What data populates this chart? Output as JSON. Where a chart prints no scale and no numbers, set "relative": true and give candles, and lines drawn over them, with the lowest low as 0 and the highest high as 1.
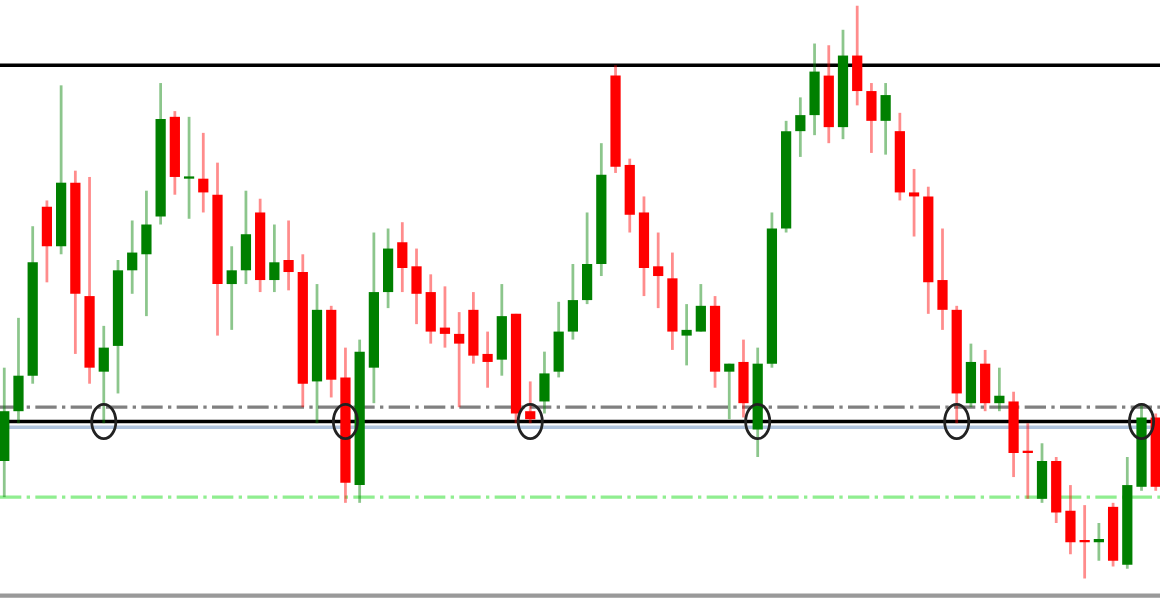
{
  "chart_data": {
    "type": "candlestick",
    "relative": true,
    "grid": false,
    "legend": false,
    "categories": [
      null,
      null,
      null,
      null,
      null,
      null,
      null,
      null,
      null,
      null,
      null,
      null,
      null,
      null,
      null,
      null,
      null,
      null,
      null,
      null,
      null,
      null,
      null,
      null,
      null,
      null,
      null,
      null,
      null,
      null,
      null,
      null,
      null,
      null,
      null,
      null,
      null,
      null,
      null,
      null,
      null,
      null,
      null,
      null,
      null,
      null,
      null,
      null,
      null,
      null,
      null,
      null,
      null,
      null,
      null,
      null,
      null,
      null,
      null,
      null,
      null,
      null,
      null,
      null,
      null,
      null,
      null,
      null,
      null,
      null,
      null,
      null,
      null,
      null,
      null,
      null,
      null,
      null,
      null,
      null,
      null,
      null
    ],
    "ohlc": [
      [
        0.205,
        0.368,
        0.142,
        0.292
      ],
      [
        0.292,
        0.455,
        0.271,
        0.354
      ],
      [
        0.354,
        0.615,
        0.34,
        0.552
      ],
      [
        0.649,
        0.66,
        0.517,
        0.58
      ],
      [
        0.58,
        0.861,
        0.566,
        0.691
      ],
      [
        0.691,
        0.712,
        0.392,
        0.497
      ],
      [
        0.493,
        0.701,
        0.34,
        0.368
      ],
      [
        0.361,
        0.441,
        0.271,
        0.403
      ],
      [
        0.406,
        0.556,
        0.323,
        0.538
      ],
      [
        0.538,
        0.625,
        0.497,
        0.569
      ],
      [
        0.566,
        0.677,
        0.458,
        0.618
      ],
      [
        0.632,
        0.865,
        0.618,
        0.802
      ],
      [
        0.806,
        0.816,
        0.67,
        0.701
      ],
      [
        0.698,
        0.806,
        0.628,
        0.701
      ],
      [
        0.698,
        0.778,
        0.639,
        0.674
      ],
      [
        0.67,
        0.726,
        0.424,
        0.514
      ],
      [
        0.514,
        0.58,
        0.434,
        0.538
      ],
      [
        0.538,
        0.677,
        0.514,
        0.601
      ],
      [
        0.639,
        0.663,
        0.5,
        0.521
      ],
      [
        0.521,
        0.618,
        0.5,
        0.552
      ],
      [
        0.556,
        0.625,
        0.503,
        0.535
      ],
      [
        0.535,
        0.566,
        0.299,
        0.34
      ],
      [
        0.344,
        0.514,
        0.271,
        0.469
      ],
      [
        0.469,
        0.476,
        0.316,
        0.347
      ],
      [
        0.351,
        0.403,
        0.132,
        0.167
      ],
      [
        0.163,
        0.417,
        0.132,
        0.396
      ],
      [
        0.368,
        0.604,
        0.306,
        0.5
      ],
      [
        0.5,
        0.611,
        0.472,
        0.576
      ],
      [
        0.587,
        0.622,
        0.5,
        0.542
      ],
      [
        0.545,
        0.576,
        0.444,
        0.497
      ],
      [
        0.5,
        0.531,
        0.41,
        0.431
      ],
      [
        0.438,
        0.51,
        0.403,
        0.427
      ],
      [
        0.427,
        0.465,
        0.299,
        0.41
      ],
      [
        0.469,
        0.5,
        0.375,
        0.389
      ],
      [
        0.392,
        0.431,
        0.333,
        0.378
      ],
      [
        0.382,
        0.514,
        0.354,
        0.458
      ],
      [
        0.462,
        0.462,
        0.271,
        0.288
      ],
      [
        0.292,
        0.344,
        0.271,
        0.278
      ],
      [
        0.309,
        0.396,
        0.288,
        0.358
      ],
      [
        0.361,
        0.483,
        0.351,
        0.431
      ],
      [
        0.431,
        0.549,
        0.417,
        0.486
      ],
      [
        0.486,
        0.639,
        0.479,
        0.549
      ],
      [
        0.549,
        0.76,
        0.528,
        0.705
      ],
      [
        0.878,
        0.896,
        0.708,
        0.719
      ],
      [
        0.722,
        0.733,
        0.604,
        0.635
      ],
      [
        0.639,
        0.667,
        0.493,
        0.542
      ],
      [
        0.545,
        0.604,
        0.472,
        0.528
      ],
      [
        0.524,
        0.569,
        0.399,
        0.431
      ],
      [
        0.424,
        0.479,
        0.372,
        0.434
      ],
      [
        0.431,
        0.514,
        0.431,
        0.476
      ],
      [
        0.476,
        0.493,
        0.333,
        0.361
      ],
      [
        0.361,
        0.375,
        0.278,
        0.375
      ],
      [
        0.378,
        0.417,
        0.281,
        0.306
      ],
      [
        0.26,
        0.403,
        0.212,
        0.375
      ],
      [
        0.375,
        0.639,
        0.368,
        0.611
      ],
      [
        0.611,
        0.799,
        0.604,
        0.781
      ],
      [
        0.781,
        0.84,
        0.736,
        0.809
      ],
      [
        0.809,
        0.934,
        0.774,
        0.885
      ],
      [
        0.878,
        0.931,
        0.76,
        0.788
      ],
      [
        0.788,
        0.958,
        0.767,
        0.913
      ],
      [
        0.913,
        1.0,
        0.826,
        0.851
      ],
      [
        0.851,
        0.865,
        0.743,
        0.799
      ],
      [
        0.799,
        0.865,
        0.74,
        0.844
      ],
      [
        0.781,
        0.813,
        0.66,
        0.674
      ],
      [
        0.674,
        0.715,
        0.597,
        0.667
      ],
      [
        0.667,
        0.684,
        0.462,
        0.517
      ],
      [
        0.521,
        0.611,
        0.434,
        0.469
      ],
      [
        0.469,
        0.476,
        0.271,
        0.323
      ],
      [
        0.306,
        0.41,
        0.299,
        0.378
      ],
      [
        0.375,
        0.399,
        0.292,
        0.306
      ],
      [
        0.306,
        0.368,
        0.292,
        0.319
      ],
      [
        0.309,
        0.326,
        0.177,
        0.219
      ],
      [
        0.222,
        0.271,
        0.139,
        0.219
      ],
      [
        0.139,
        0.236,
        0.132,
        0.205
      ],
      [
        0.205,
        0.212,
        0.097,
        0.115
      ],
      [
        0.118,
        0.163,
        0.042,
        0.063
      ],
      [
        0.066,
        0.128,
        0.0,
        0.063
      ],
      [
        0.063,
        0.097,
        0.031,
        0.069
      ],
      [
        0.125,
        0.132,
        0.021,
        0.031
      ],
      [
        0.024,
        0.212,
        0.017,
        0.163
      ],
      [
        0.16,
        0.306,
        0.153,
        0.281
      ],
      [
        0.281,
        0.288,
        0.153,
        0.16
      ]
    ],
    "colors": [
      "#008000",
      "#008000",
      "#008000",
      "#ff0000",
      "#008000",
      "#ff0000",
      "#ff0000",
      "#008000",
      "#008000",
      "#008000",
      "#008000",
      "#008000",
      "#ff0000",
      "#008000",
      "#ff0000",
      "#ff0000",
      "#008000",
      "#008000",
      "#ff0000",
      "#008000",
      "#ff0000",
      "#ff0000",
      "#008000",
      "#ff0000",
      "#ff0000",
      "#008000",
      "#008000",
      "#008000",
      "#ff0000",
      "#ff0000",
      "#ff0000",
      "#ff0000",
      "#ff0000",
      "#ff0000",
      "#ff0000",
      "#008000",
      "#ff0000",
      "#ff0000",
      "#008000",
      "#008000",
      "#008000",
      "#008000",
      "#008000",
      "#ff0000",
      "#ff0000",
      "#ff0000",
      "#ff0000",
      "#ff0000",
      "#008000",
      "#008000",
      "#ff0000",
      "#008000",
      "#ff0000",
      "#008000",
      "#008000",
      "#008000",
      "#008000",
      "#008000",
      "#ff0000",
      "#008000",
      "#ff0000",
      "#ff0000",
      "#008000",
      "#ff0000",
      "#ff0000",
      "#ff0000",
      "#ff0000",
      "#ff0000",
      "#008000",
      "#ff0000",
      "#008000",
      "#ff0000",
      "#ff0000",
      "#008000",
      "#ff0000",
      "#ff0000",
      "#ff0000",
      "#008000",
      "#ff0000",
      "#008000",
      "#008000",
      "#ff0000"
    ],
    "ref_lines": [
      {
        "axis": "y",
        "value": 0.896,
        "color": "#000000",
        "line_style": "solid"
      },
      {
        "axis": "y",
        "value": 0.299,
        "color": "#808080",
        "line_style": "dashdot"
      },
      {
        "axis": "y",
        "value": 0.274,
        "color": "#000000",
        "line_style": "solid"
      },
      {
        "axis": "y",
        "value": 0.264,
        "color": "#b0c4de",
        "line_style": "solid"
      },
      {
        "axis": "y",
        "value": 0.142,
        "color": "#90ee90",
        "line_style": "dashdot"
      }
    ]
  }
}
